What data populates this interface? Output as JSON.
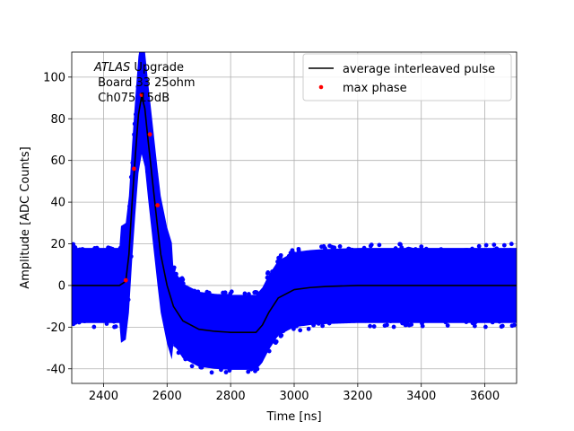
{
  "chart_data": {
    "type": "scatter",
    "xlabel": "Time [ns]",
    "ylabel": "Amplitude [ADC Counts]",
    "xlim": [
      2300,
      3700
    ],
    "ylim": [
      -47,
      112
    ],
    "x_ticks": [
      2400,
      2600,
      2800,
      3000,
      3200,
      3400,
      3600
    ],
    "y_ticks": [
      -40,
      -20,
      0,
      20,
      40,
      60,
      80,
      100
    ],
    "grid": true,
    "legend_position": "top-right",
    "annotation": {
      "line1_italic": "ATLAS",
      "line1_rest": " Upgrade",
      "line2": " Board 33 25ohm",
      "line3": " Ch075 15dB"
    },
    "series": [
      {
        "name": "average interleaved pulse",
        "style": "line",
        "color": "#000000",
        "x": [
          2300,
          2400,
          2450,
          2470,
          2480,
          2490,
          2500,
          2510,
          2520,
          2530,
          2540,
          2550,
          2560,
          2570,
          2580,
          2600,
          2620,
          2650,
          2700,
          2750,
          2800,
          2850,
          2880,
          2900,
          2920,
          2950,
          3000,
          3050,
          3100,
          3200,
          3400,
          3600,
          3700
        ],
        "y": [
          0,
          0,
          0,
          2,
          15,
          40,
          62,
          82,
          91,
          85,
          70,
          56,
          42,
          28,
          15,
          0,
          -10,
          -17,
          -21,
          -22,
          -22.5,
          -22.5,
          -22.5,
          -19,
          -13,
          -6,
          -2,
          -1,
          -0.5,
          0,
          0,
          0,
          0
        ]
      },
      {
        "name": "max phase",
        "style": "points",
        "color": "#ff0000",
        "x": [
          2470,
          2496,
          2520,
          2546,
          2570
        ],
        "y": [
          2.5,
          56,
          91.5,
          72.5,
          38.5
        ]
      },
      {
        "name": "",
        "style": "noise-band",
        "color": "#0000ff",
        "noise_half_width": 18
      }
    ]
  }
}
